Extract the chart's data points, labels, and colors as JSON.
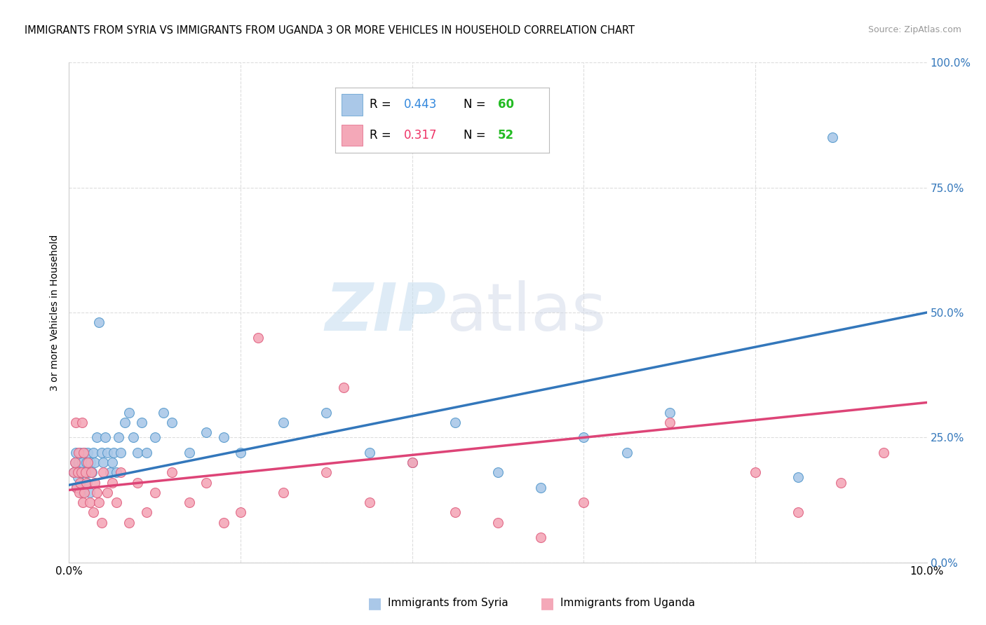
{
  "title": "IMMIGRANTS FROM SYRIA VS IMMIGRANTS FROM UGANDA 3 OR MORE VEHICLES IN HOUSEHOLD CORRELATION CHART",
  "source": "Source: ZipAtlas.com",
  "ylabel": "3 or more Vehicles in Household",
  "ytick_values": [
    0,
    25,
    50,
    75,
    100
  ],
  "xlim": [
    0,
    10
  ],
  "ylim": [
    0,
    100
  ],
  "syria_R": 0.443,
  "syria_N": 60,
  "uganda_R": 0.317,
  "uganda_N": 52,
  "syria_color": "#aac8e8",
  "uganda_color": "#f4a8b8",
  "syria_edge_color": "#5599cc",
  "uganda_edge_color": "#e06080",
  "syria_line_color": "#3377bb",
  "uganda_line_color": "#dd4477",
  "legend_R_color_syria": "#3388dd",
  "legend_R_color_uganda": "#ee3366",
  "legend_N_color": "#22bb22",
  "watermark_color": "#d8eaf8",
  "syria_trend_x": [
    0,
    10
  ],
  "syria_trend_y": [
    15.5,
    50.0
  ],
  "uganda_trend_x": [
    0,
    10
  ],
  "uganda_trend_y": [
    14.5,
    32.0
  ],
  "syria_x": [
    0.05,
    0.07,
    0.08,
    0.09,
    0.1,
    0.11,
    0.12,
    0.13,
    0.14,
    0.15,
    0.16,
    0.17,
    0.18,
    0.19,
    0.2,
    0.21,
    0.22,
    0.23,
    0.24,
    0.25,
    0.27,
    0.28,
    0.3,
    0.32,
    0.35,
    0.38,
    0.4,
    0.42,
    0.45,
    0.48,
    0.5,
    0.52,
    0.55,
    0.58,
    0.6,
    0.65,
    0.7,
    0.75,
    0.8,
    0.85,
    0.9,
    1.0,
    1.1,
    1.2,
    1.4,
    1.6,
    1.8,
    2.0,
    2.5,
    3.0,
    3.5,
    4.0,
    4.5,
    5.0,
    5.5,
    6.0,
    6.5,
    7.0,
    8.5,
    8.9
  ],
  "syria_y": [
    18,
    20,
    22,
    15,
    17,
    20,
    18,
    22,
    16,
    20,
    14,
    18,
    22,
    18,
    20,
    16,
    22,
    18,
    14,
    20,
    18,
    22,
    20,
    25,
    48,
    22,
    20,
    25,
    22,
    18,
    20,
    22,
    18,
    25,
    22,
    28,
    30,
    25,
    22,
    28,
    22,
    25,
    30,
    28,
    22,
    26,
    25,
    22,
    28,
    30,
    22,
    20,
    28,
    18,
    15,
    25,
    22,
    30,
    17,
    85
  ],
  "uganda_x": [
    0.05,
    0.07,
    0.08,
    0.09,
    0.1,
    0.11,
    0.12,
    0.13,
    0.14,
    0.15,
    0.16,
    0.17,
    0.18,
    0.19,
    0.2,
    0.22,
    0.24,
    0.26,
    0.28,
    0.3,
    0.32,
    0.35,
    0.38,
    0.4,
    0.45,
    0.5,
    0.55,
    0.6,
    0.7,
    0.8,
    0.9,
    1.0,
    1.2,
    1.4,
    1.6,
    1.8,
    2.0,
    2.5,
    3.0,
    3.5,
    4.0,
    4.5,
    5.0,
    5.5,
    6.0,
    7.0,
    8.0,
    8.5,
    9.0,
    9.5,
    2.2,
    3.2
  ],
  "uganda_y": [
    18,
    20,
    28,
    15,
    18,
    22,
    14,
    16,
    18,
    28,
    12,
    22,
    14,
    18,
    16,
    20,
    12,
    18,
    10,
    16,
    14,
    12,
    8,
    18,
    14,
    16,
    12,
    18,
    8,
    16,
    10,
    14,
    18,
    12,
    16,
    8,
    10,
    14,
    18,
    12,
    20,
    10,
    8,
    5,
    12,
    28,
    18,
    10,
    16,
    22,
    45,
    35
  ]
}
